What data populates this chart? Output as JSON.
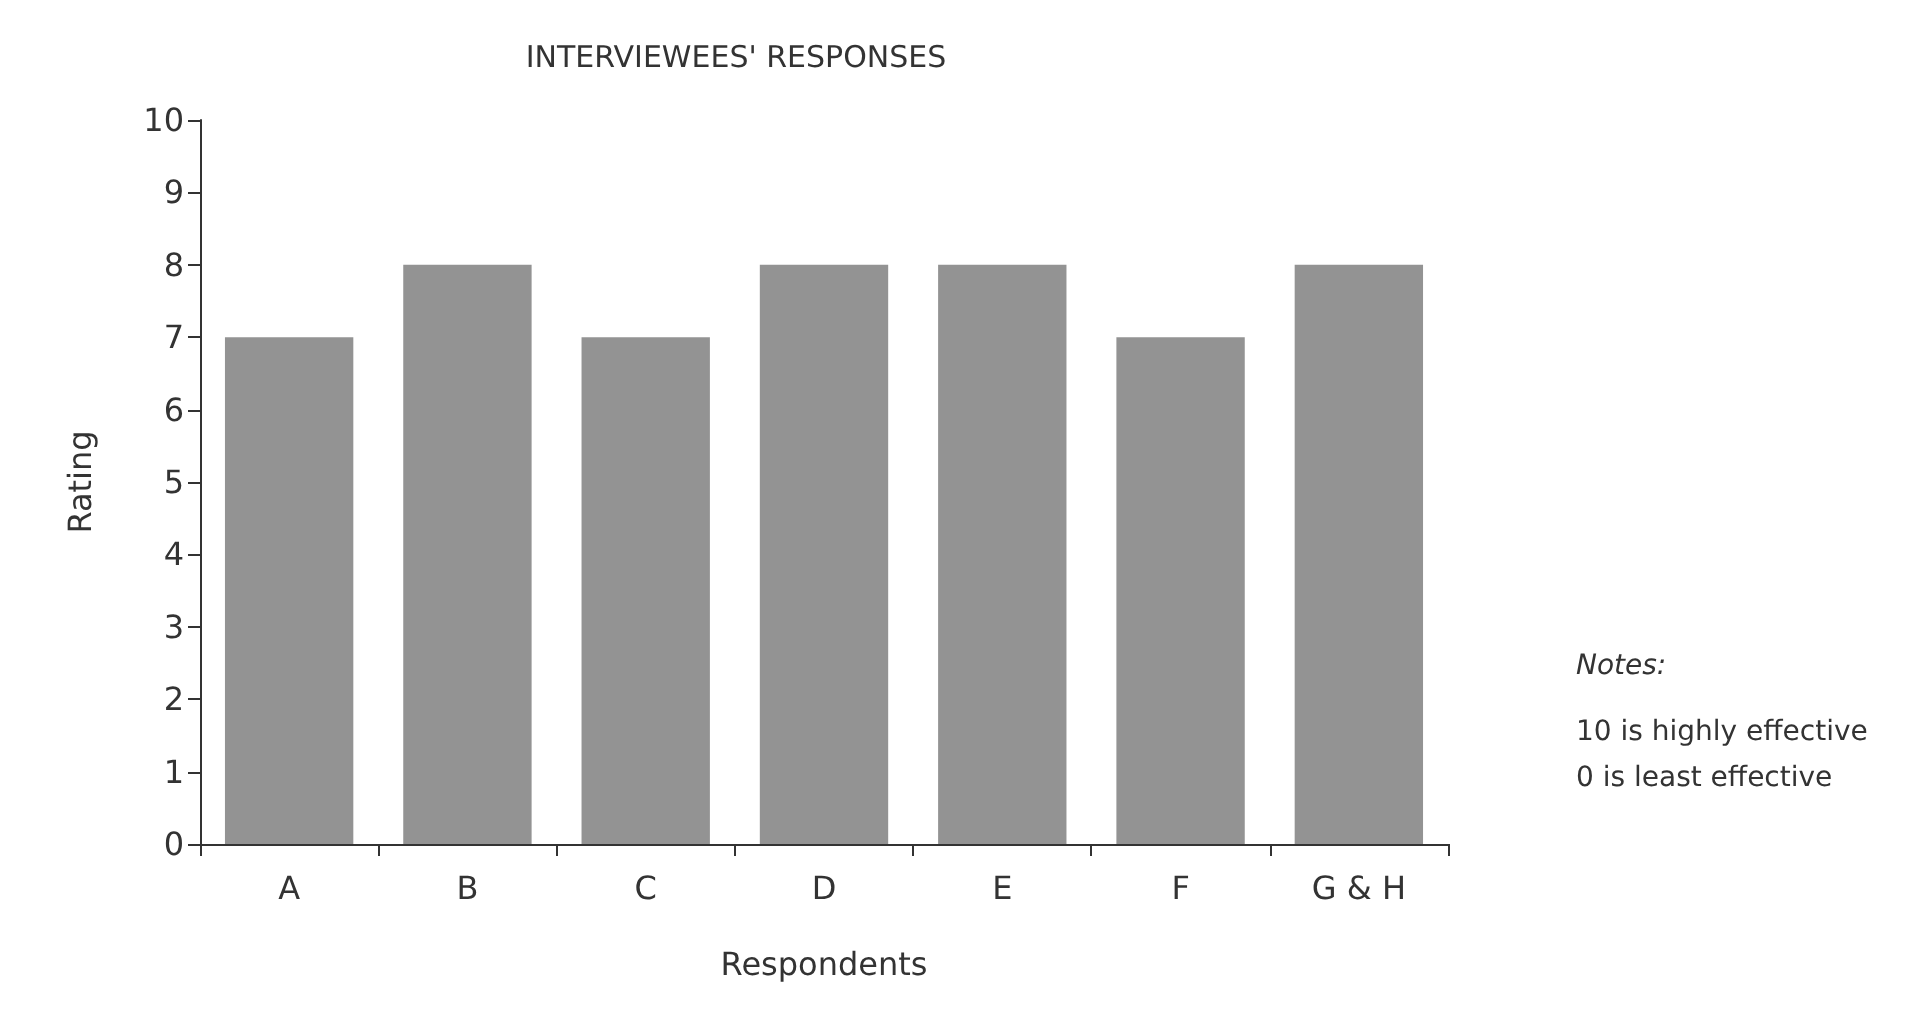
{
  "chart_data": {
    "type": "bar",
    "title": "INTERVIEWEES' RESPONSES",
    "xlabel": "Respondents",
    "ylabel": "Rating",
    "categories": [
      "A",
      "B",
      "C",
      "D",
      "E",
      "F",
      "G & H"
    ],
    "values": [
      7,
      8,
      7,
      8,
      8,
      7,
      8
    ],
    "color": "#939393",
    "ylim": [
      0,
      10
    ],
    "yticks": [
      0,
      1,
      2,
      3,
      4,
      5,
      6,
      7,
      8,
      9,
      10
    ],
    "grid": false,
    "annotations": [
      "Notes:",
      "10 is highly effective",
      "0 is least effective"
    ]
  }
}
